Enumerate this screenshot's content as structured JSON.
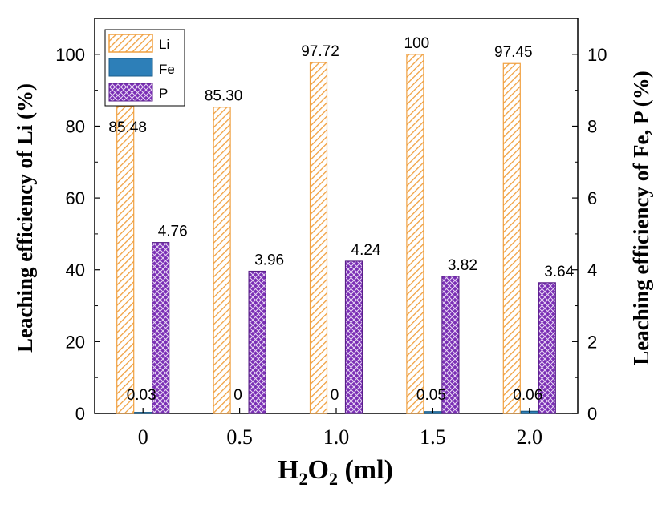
{
  "chart_data": {
    "type": "bar",
    "categories": [
      "0",
      "0.5",
      "1.0",
      "1.5",
      "2.0"
    ],
    "series": [
      {
        "name": "Li",
        "axis": "left",
        "values": [
          85.48,
          85.3,
          97.72,
          100,
          97.45
        ],
        "labels": [
          "85.48",
          "85.30",
          "97.72",
          "100",
          "97.45"
        ],
        "color": "#f0a040"
      },
      {
        "name": "Fe",
        "axis": "right",
        "values": [
          0.03,
          0,
          0,
          0.05,
          0.06
        ],
        "labels": [
          "0.03",
          "0",
          "0",
          "0.05",
          "0.06"
        ],
        "color": "#2d7fb8"
      },
      {
        "name": "P",
        "axis": "right",
        "values": [
          4.76,
          3.96,
          4.24,
          3.82,
          3.64
        ],
        "labels": [
          "4.76",
          "3.96",
          "4.24",
          "3.82",
          "3.64"
        ],
        "color": "#7a2fb5"
      }
    ],
    "xlabel": {
      "base": "H",
      "sub1": "2",
      "mid": "O",
      "sub2": "2",
      "tail": " (ml)"
    },
    "ylabel_left": "Leaching efficiency of Li (%)",
    "ylabel_right": "Leaching efficiency of Fe, P (%)",
    "ylim_left": [
      0,
      110
    ],
    "ylim_right": [
      0,
      11
    ],
    "yticks_left": [
      "0",
      "20",
      "40",
      "60",
      "80",
      "100"
    ],
    "yticks_right": [
      "0",
      "2",
      "4",
      "6",
      "8",
      "10"
    ],
    "legend": {
      "position": "top-left",
      "entries": [
        "Li",
        "Fe",
        "P"
      ]
    },
    "grid": false
  }
}
